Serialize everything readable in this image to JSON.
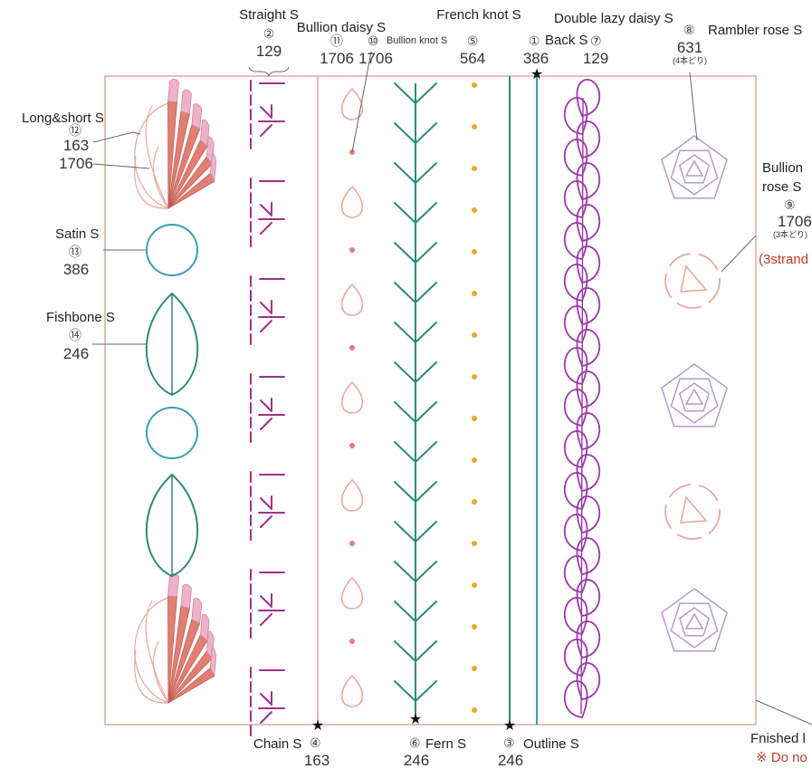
{
  "labels": {
    "straight": {
      "name": "Straight S",
      "no": "②",
      "thread": "129"
    },
    "bullion_daisy": {
      "name": "Bullion daisy S",
      "no": "⑪",
      "thread": "1706"
    },
    "bullion_knot": {
      "name": "Bullion knot S",
      "no": "⑩",
      "thread": "1706"
    },
    "french_knot": {
      "name": "French knot S",
      "no": "⑤",
      "thread": "564"
    },
    "back": {
      "name": "Back S",
      "no": "①",
      "thread": "386"
    },
    "double_lazy_daisy": {
      "name": "Double lazy daisy S",
      "no": "⑦",
      "thread": "129"
    },
    "rambler_rose": {
      "name": "Rambler rose S",
      "no": "⑧",
      "thread": "631",
      "strands": "(4本どり)"
    },
    "long_short": {
      "name": "Long&short S",
      "no": "⑫",
      "thread1": "163",
      "thread2": "1706"
    },
    "satin": {
      "name": "Satin S",
      "no": "⑬",
      "thread": "386"
    },
    "fishbone": {
      "name": "Fishbone S",
      "no": "⑭",
      "thread": "246"
    },
    "bullion_rose": {
      "name1": "Bullion",
      "name2": "rose S",
      "no": "⑨",
      "thread": "1706",
      "strands": "(3本どり)",
      "strands_en": "(3strand"
    },
    "chain": {
      "name": "Chain S",
      "no": "④",
      "thread": "163"
    },
    "fern": {
      "name": "Fern S",
      "no": "⑥",
      "thread": "246"
    },
    "outline": {
      "name": "Outline S",
      "no": "③",
      "thread": "246"
    },
    "finished": {
      "text": "Fnished l"
    },
    "note": {
      "text": "※ Do no"
    }
  },
  "colors": {
    "frame": "#e0a8a0",
    "magenta": "#a0308a",
    "purple": "#9a3aa8",
    "teal": "#2e8a7a",
    "light_teal": "#3aa0b0",
    "gold": "#e8a92a",
    "salmon": "#e07f72",
    "pink": "#efb2c8",
    "peach": "#e8a8a0",
    "lavender": "#b49acb",
    "red_note": "#c0392b"
  }
}
